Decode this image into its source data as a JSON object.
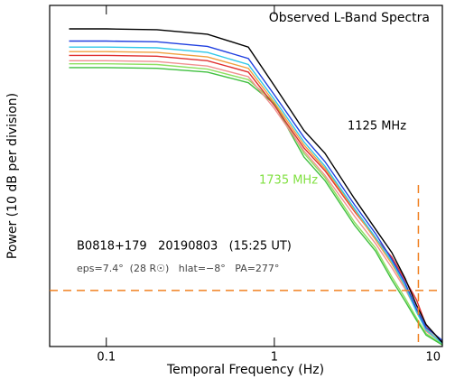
{
  "chart_data": {
    "type": "line",
    "title": "Observed L-Band Spectra",
    "x_label": "Temporal Frequency (Hz)",
    "y_label": "Power (10 dB per division)",
    "annotations": {
      "low_freq": "1125 MHz",
      "high_freq": "1735 MHz",
      "source": "B0818+179   20190803   (15:25 UT)",
      "geometry": "eps=7.4°  (28 R☉)   hlat=−8°   PA=277°"
    },
    "log_x": true,
    "xlim": [
      0.046,
      10
    ],
    "xticks": [
      0.1,
      1,
      10
    ],
    "ylim": [
      0,
      45
    ],
    "reference_lines": {
      "y": 7.4,
      "x": 7.2,
      "color": "#f08020"
    },
    "x": [
      0.06,
      0.1,
      0.2,
      0.4,
      0.7,
      1,
      1.5,
      2,
      3,
      4,
      5,
      6,
      7,
      8,
      10
    ],
    "series": [
      {
        "color": "#8ee060",
        "values": [
          37.3,
          37.3,
          37.2,
          36.6,
          35.2,
          32.2,
          25.5,
          22.3,
          16.4,
          13.0,
          9.2,
          6.4,
          3.8,
          1.7,
          0.3
        ]
      },
      {
        "color": "#40c040",
        "values": [
          36.8,
          36.8,
          36.7,
          36.2,
          34.8,
          32.0,
          25.0,
          21.9,
          16.0,
          12.6,
          8.8,
          6.0,
          3.5,
          1.5,
          0.2
        ]
      },
      {
        "color": "#f09090",
        "values": [
          37.7,
          37.7,
          37.6,
          37.0,
          35.6,
          31.4,
          25.8,
          22.6,
          17.2,
          13.6,
          10.4,
          7.6,
          4.8,
          2.0,
          0.5
        ]
      },
      {
        "color": "#e03030",
        "values": [
          38.4,
          38.4,
          38.3,
          37.7,
          36.2,
          31.8,
          26.2,
          23.2,
          17.8,
          14.3,
          11.8,
          8.8,
          6.2,
          2.8,
          0.6
        ]
      },
      {
        "color": "#f0a040",
        "values": [
          38.9,
          38.9,
          38.8,
          38.2,
          36.7,
          32.2,
          26.6,
          23.5,
          18.0,
          14.1,
          10.9,
          7.9,
          4.9,
          2.3,
          0.4
        ]
      },
      {
        "color": "#30c8e8",
        "values": [
          39.5,
          39.5,
          39.4,
          38.8,
          37.2,
          32.6,
          27.0,
          23.8,
          18.2,
          14.4,
          11.2,
          8.0,
          4.6,
          2.2,
          0.4
        ]
      },
      {
        "color": "#2040e0",
        "values": [
          40.3,
          40.3,
          40.2,
          39.6,
          38.0,
          33.2,
          27.6,
          24.4,
          18.7,
          14.9,
          11.5,
          8.4,
          5.0,
          2.5,
          0.8
        ]
      },
      {
        "color": "#000000",
        "values": [
          41.9,
          41.9,
          41.8,
          41.2,
          39.5,
          34.4,
          28.5,
          25.5,
          19.5,
          15.5,
          12.4,
          9.0,
          5.5,
          2.9,
          0.5
        ]
      }
    ]
  }
}
